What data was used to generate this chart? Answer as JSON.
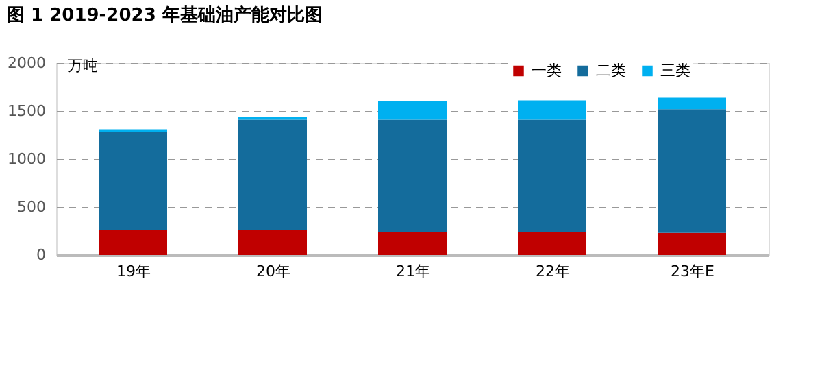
{
  "chart_data": {
    "type": "bar",
    "title": "图 1 2019-2023 年基础油产能对比图",
    "ylabel": "万吨",
    "categories": [
      "19年",
      "20年",
      "21年",
      "22年",
      "23年E"
    ],
    "stacked": true,
    "series": [
      {
        "name": "一类",
        "color": "#c00000",
        "values": [
          260,
          260,
          240,
          240,
          230
        ]
      },
      {
        "name": "二类",
        "color": "#146c9c",
        "values": [
          1020,
          1150,
          1170,
          1170,
          1290
        ]
      },
      {
        "name": "三类",
        "color": "#00b0f0",
        "values": [
          30,
          30,
          190,
          200,
          120
        ]
      }
    ],
    "ylim": [
      0,
      2000
    ],
    "yticks": [
      0,
      500,
      1000,
      1500,
      2000
    ],
    "grid": "y",
    "legend": "top right"
  }
}
